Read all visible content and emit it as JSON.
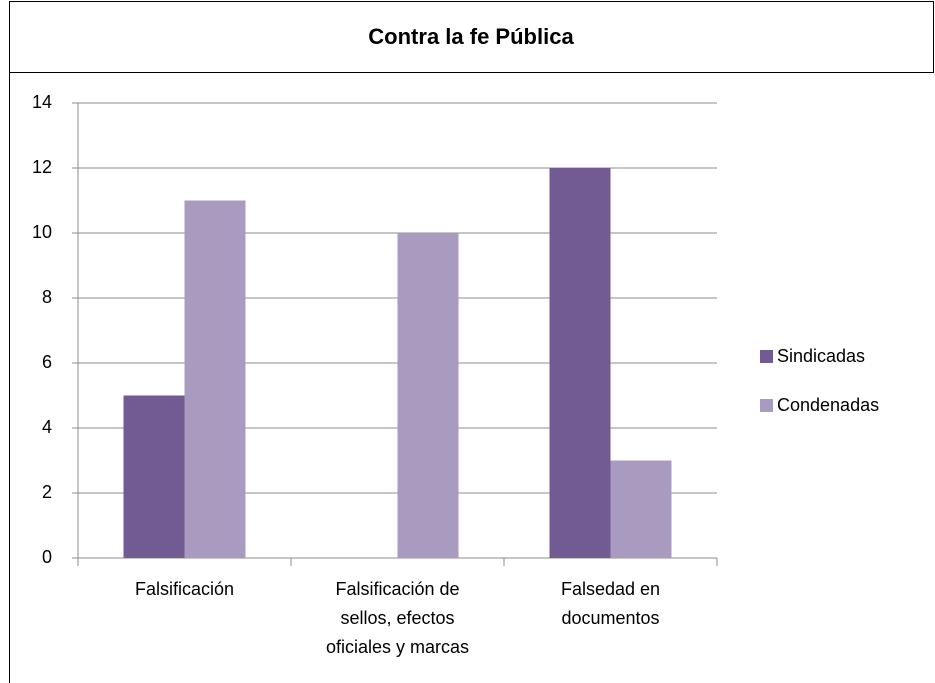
{
  "chart_data": {
    "type": "bar",
    "title": "Contra la fe Pública",
    "categories": [
      "Falsificación",
      "Falsificación de sellos, efectos oficiales y marcas",
      "Falsedad en documentos"
    ],
    "series": [
      {
        "name": "Sindicadas",
        "color": "#725a92",
        "values": [
          5,
          0,
          12
        ]
      },
      {
        "name": "Condenadas",
        "color": "#a99bc0",
        "values": [
          11,
          10,
          3
        ]
      }
    ],
    "ylim": [
      0,
      14
    ],
    "yticks": [
      0,
      2,
      4,
      6,
      8,
      10,
      12,
      14
    ],
    "grid": true,
    "legend": "right"
  }
}
